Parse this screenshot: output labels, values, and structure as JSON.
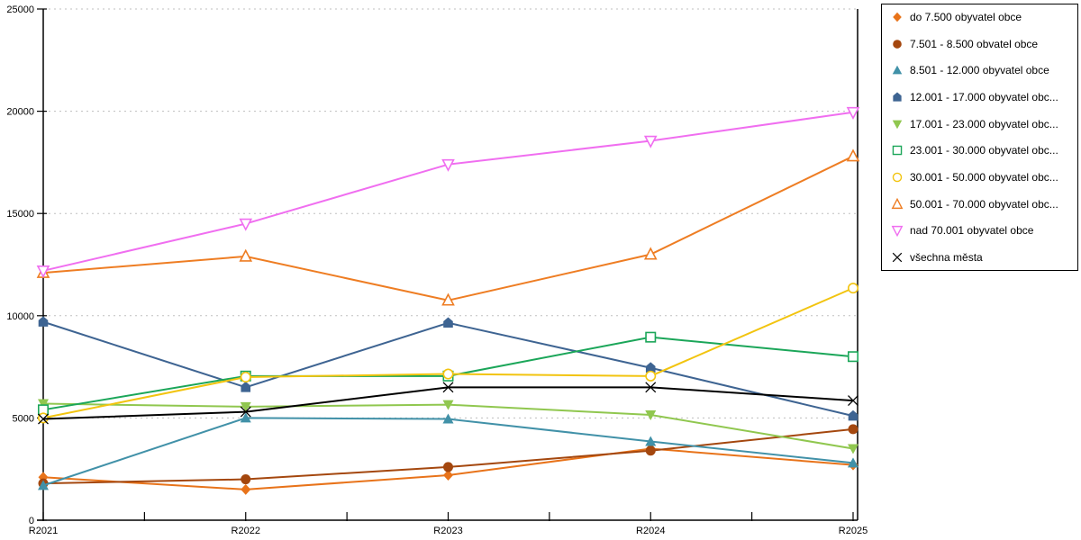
{
  "chart_data": {
    "type": "line",
    "title": "",
    "xlabel": "",
    "ylabel": "",
    "categories": [
      "R2021",
      "R2022",
      "R2023",
      "R2024",
      "R2025"
    ],
    "ylim": [
      0,
      25000
    ],
    "yticks": [
      0,
      5000,
      10000,
      15000,
      20000,
      25000
    ],
    "ytick_labels": [
      "0",
      "5000",
      "10000",
      "15000",
      "20000",
      "25000"
    ],
    "grid": "horizontal-dashed",
    "grid_color": "#bfbfbf",
    "axis_color": "#000000",
    "legend_position": "right-outside",
    "series": [
      {
        "name": "do 7.500 obyvatel obce",
        "marker": "diamond",
        "color": "#e8731a",
        "values": [
          2100,
          1500,
          2200,
          3500,
          2700
        ]
      },
      {
        "name": "7.501 - 8.500 obvatel obce",
        "marker": "circle",
        "color": "#a4470e",
        "values": [
          1800,
          2000,
          2600,
          3400,
          4450
        ]
      },
      {
        "name": "8.501 - 12.000 obyvatel obce",
        "marker": "triangle-up",
        "color": "#4191a8",
        "values": [
          1700,
          5000,
          4950,
          3850,
          2800
        ]
      },
      {
        "name": "12.001 - 17.000 obyvatel obc...",
        "marker": "pentagon",
        "color": "#3e6492",
        "values": [
          9700,
          6500,
          9650,
          7450,
          5100
        ]
      },
      {
        "name": "17.001 - 23.000 obyvatel obc...",
        "marker": "triangle-down",
        "color": "#90c74f",
        "values": [
          5700,
          5550,
          5650,
          5150,
          3500
        ]
      },
      {
        "name": "23.001 - 30.000 obyvatel obc...",
        "marker": "square-open",
        "color": "#1ba659",
        "values": [
          5400,
          7050,
          7050,
          8950,
          8000
        ]
      },
      {
        "name": "30.001 - 50.000 obyvatel obc...",
        "marker": "circle-open",
        "color": "#f2c40f",
        "values": [
          5000,
          7000,
          7150,
          7050,
          11350
        ]
      },
      {
        "name": "50.001 - 70.000 obyvatel obc...",
        "marker": "triangle-up-open",
        "color": "#ee7d23",
        "values": [
          12100,
          12900,
          10750,
          13000,
          17800
        ]
      },
      {
        "name": "nad 70.001 obyvatel obce",
        "marker": "triangle-down-open",
        "color": "#f06ef0",
        "values": [
          12200,
          14500,
          17400,
          18550,
          19950
        ]
      },
      {
        "name": "všechna města",
        "marker": "x",
        "color": "#000000",
        "values": [
          4950,
          5300,
          6500,
          6500,
          5850
        ]
      }
    ]
  }
}
